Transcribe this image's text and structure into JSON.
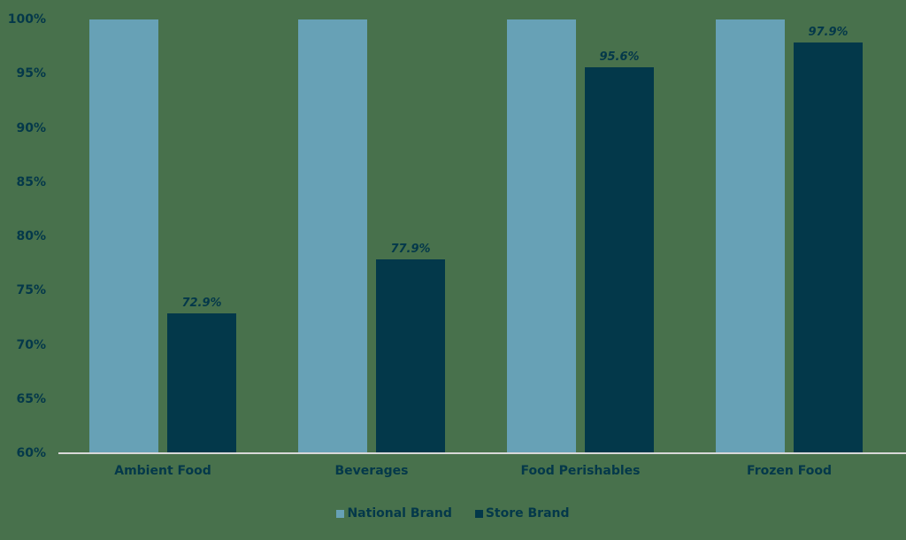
{
  "chart_data": {
    "type": "bar",
    "title": "",
    "xlabel": "",
    "ylabel": "",
    "ylim": [
      60,
      100
    ],
    "yticks": [
      "100%",
      "95%",
      "90%",
      "85%",
      "80%",
      "75%",
      "70%",
      "65%",
      "60%"
    ],
    "categories": [
      "Ambient Food",
      "Beverages",
      "Food Perishables",
      "Frozen Food"
    ],
    "series": [
      {
        "name": "National Brand",
        "color": "#67a1b6",
        "values": [
          100,
          100,
          100,
          100
        ]
      },
      {
        "name": "Store Brand",
        "color": "#03384a",
        "values": [
          72.9,
          77.9,
          95.6,
          97.9
        ]
      }
    ],
    "data_labels": {
      "Store Brand": [
        "72.9%",
        "77.9%",
        "95.6%",
        "97.9%"
      ]
    },
    "grid": false,
    "legend_position": "bottom"
  },
  "colors": {
    "background": "#48714c",
    "text": "#04384a",
    "axis": "#d8d8d8"
  }
}
